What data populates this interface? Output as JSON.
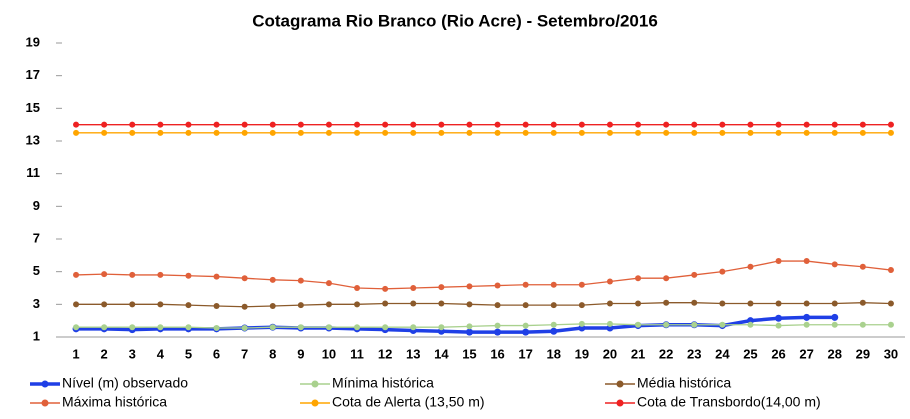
{
  "chart_data": {
    "type": "line",
    "title": "Cotagrama Rio Branco (Rio Acre) - Setembro/2016",
    "categories": [
      "1",
      "2",
      "3",
      "4",
      "5",
      "6",
      "7",
      "8",
      "9",
      "10",
      "11",
      "12",
      "13",
      "14",
      "15",
      "16",
      "17",
      "18",
      "19",
      "20",
      "21",
      "22",
      "23",
      "24",
      "25",
      "26",
      "27",
      "28",
      "29",
      "30"
    ],
    "series": [
      {
        "name": "Nível (m) observado",
        "color": "#1f3fe6",
        "values": [
          1.5,
          1.5,
          1.45,
          1.5,
          1.5,
          1.5,
          1.55,
          1.6,
          1.55,
          1.55,
          1.5,
          1.45,
          1.4,
          1.35,
          1.3,
          1.3,
          1.3,
          1.35,
          1.55,
          1.55,
          1.7,
          1.75,
          1.75,
          1.7,
          2.0,
          2.15,
          2.2,
          2.2,
          null,
          null
        ]
      },
      {
        "name": "Mínima histórica",
        "color": "#a9d18e",
        "values": [
          1.6,
          1.6,
          1.6,
          1.6,
          1.6,
          1.55,
          1.55,
          1.6,
          1.6,
          1.6,
          1.6,
          1.6,
          1.6,
          1.6,
          1.65,
          1.7,
          1.7,
          1.75,
          1.8,
          1.8,
          1.75,
          1.75,
          1.75,
          1.75,
          1.75,
          1.7,
          1.75,
          1.75,
          1.75,
          1.75
        ]
      },
      {
        "name": "Média histórica",
        "color": "#8b5a2b",
        "values": [
          3.0,
          3.0,
          3.0,
          3.0,
          2.95,
          2.9,
          2.85,
          2.9,
          2.95,
          3.0,
          3.0,
          3.05,
          3.05,
          3.05,
          3.0,
          2.95,
          2.95,
          2.95,
          2.95,
          3.05,
          3.05,
          3.1,
          3.1,
          3.05,
          3.05,
          3.05,
          3.05,
          3.05,
          3.1,
          3.05
        ]
      },
      {
        "name": "Máxima histórica",
        "color": "#e0603a",
        "values": [
          4.8,
          4.85,
          4.8,
          4.8,
          4.75,
          4.7,
          4.6,
          4.5,
          4.45,
          4.3,
          4.0,
          3.95,
          4.0,
          4.05,
          4.1,
          4.15,
          4.2,
          4.2,
          4.2,
          4.4,
          4.6,
          4.6,
          4.8,
          5.0,
          5.3,
          5.65,
          5.65,
          5.45,
          5.3,
          5.1
        ]
      },
      {
        "name": "Cota de Alerta (13,50 m)",
        "color": "#ffa500",
        "values": [
          13.5,
          13.5,
          13.5,
          13.5,
          13.5,
          13.5,
          13.5,
          13.5,
          13.5,
          13.5,
          13.5,
          13.5,
          13.5,
          13.5,
          13.5,
          13.5,
          13.5,
          13.5,
          13.5,
          13.5,
          13.5,
          13.5,
          13.5,
          13.5,
          13.5,
          13.5,
          13.5,
          13.5,
          13.5,
          13.5
        ]
      },
      {
        "name": "Cota de Transbordo(14,00 m)",
        "color": "#ee2222",
        "values": [
          14,
          14,
          14,
          14,
          14,
          14,
          14,
          14,
          14,
          14,
          14,
          14,
          14,
          14,
          14,
          14,
          14,
          14,
          14,
          14,
          14,
          14,
          14,
          14,
          14,
          14,
          14,
          14,
          14,
          14
        ]
      }
    ],
    "ylim": [
      1,
      19
    ],
    "yticks": [
      1,
      3,
      5,
      7,
      9,
      11,
      13,
      15,
      17,
      19
    ],
    "grid": false
  }
}
